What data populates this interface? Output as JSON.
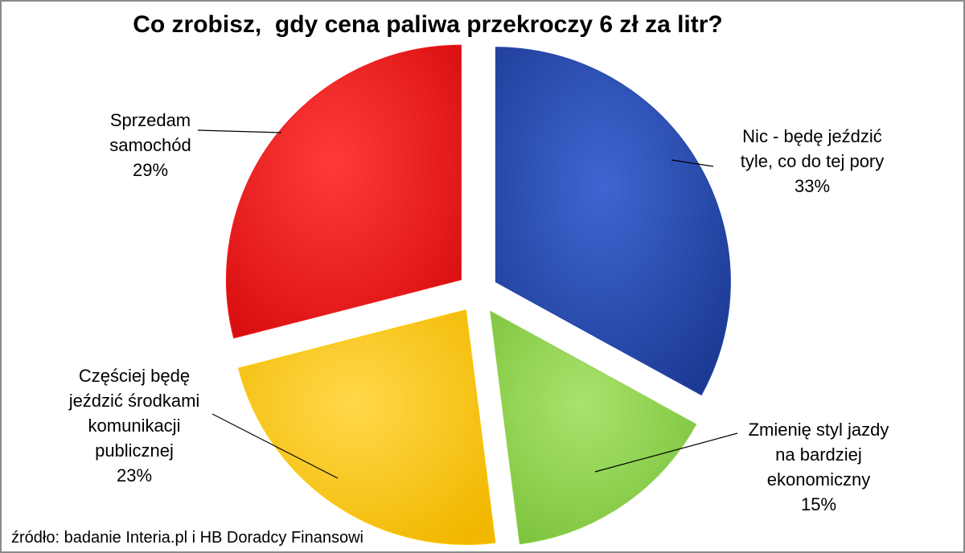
{
  "chart_data": {
    "type": "pie",
    "title": "Co zrobisz,  gdy cena paliwa przekroczy 6 zł za litr?",
    "slices": [
      {
        "key": "nic",
        "label_lines": [
          "Nic  - będę jeździć",
          "tyle, co do tej pory"
        ],
        "percent_label": "33%",
        "value": 33,
        "color": "#2346a8"
      },
      {
        "key": "styl",
        "label_lines": [
          "Zmienię styl jazdy",
          "na bardziej",
          "ekonomiczny"
        ],
        "percent_label": "15%",
        "value": 15,
        "color": "#8fd14f"
      },
      {
        "key": "komunikacja",
        "label_lines": [
          "Częściej będę",
          "jeździć środkami",
          "komunikacji",
          "publicznej"
        ],
        "percent_label": "23%",
        "value": 23,
        "color": "#ffc800"
      },
      {
        "key": "sprzedam",
        "label_lines": [
          "Sprzedam",
          "samochód"
        ],
        "percent_label": "29%",
        "value": 29,
        "color": "#f21c1c"
      }
    ],
    "legend": "none"
  },
  "source": "źródło: badanie Interia.pl i HB Doradcy Finansowi"
}
